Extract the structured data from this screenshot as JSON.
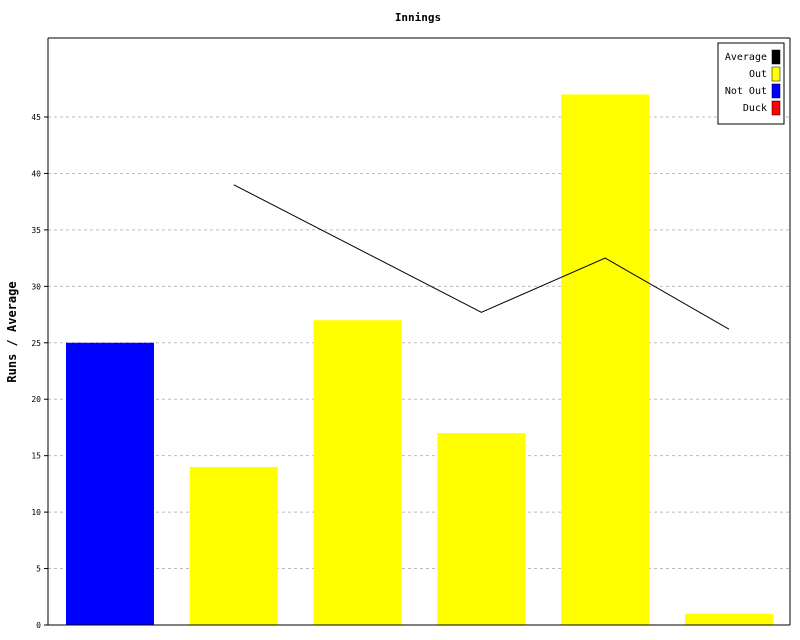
{
  "chart_data": {
    "type": "bar",
    "title": "Innings",
    "ylabel": "Runs / Average",
    "xlabel": "",
    "ylim": [
      0,
      52
    ],
    "yticks": [
      0,
      5,
      10,
      15,
      20,
      25,
      30,
      35,
      40,
      45
    ],
    "grid": true,
    "legend_position": "top-right",
    "bars": [
      {
        "value": 25,
        "status": "Not Out"
      },
      {
        "value": 14,
        "status": "Out"
      },
      {
        "value": 27,
        "status": "Out"
      },
      {
        "value": 17,
        "status": "Out"
      },
      {
        "value": 47,
        "status": "Out"
      },
      {
        "value": 1,
        "status": "Out"
      }
    ],
    "average_line": [
      null,
      39,
      null,
      27.7,
      32.5,
      26.2
    ],
    "legend": [
      {
        "label": "Average",
        "color": "#000000"
      },
      {
        "label": "Out",
        "color": "#ffff00"
      },
      {
        "label": "Not Out",
        "color": "#0000ff"
      },
      {
        "label": "Duck",
        "color": "#ff0000"
      }
    ],
    "colors": {
      "Out": "#ffff00",
      "Not Out": "#0000ff",
      "Duck": "#ff0000",
      "Average": "#000000"
    }
  }
}
